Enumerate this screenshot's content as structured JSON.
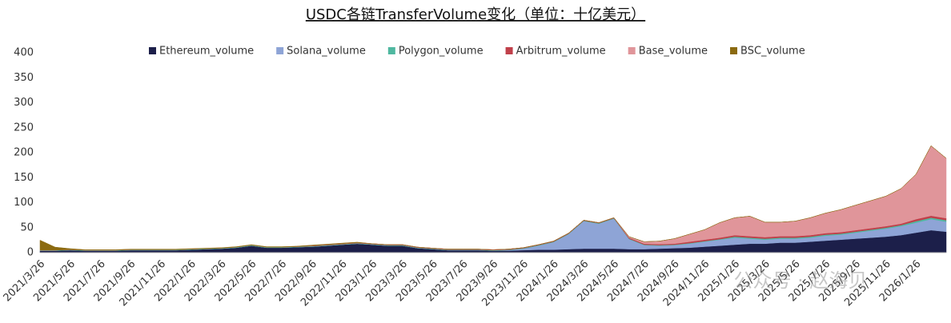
{
  "chart_data": {
    "type": "stacked-area",
    "title": "USDC各链TransferVolume变化（单位：十亿美元）",
    "watermark": "公众号 · 赵海贝",
    "categories": [
      "2021/3/26",
      null,
      "2021/5/26",
      null,
      "2021/7/26",
      null,
      "2021/9/26",
      null,
      "2021/11/26",
      null,
      "2022/1/26",
      null,
      "2022/3/26",
      null,
      "2022/5/26",
      null,
      "2022/7/26",
      null,
      "2022/9/26",
      null,
      "2022/11/26",
      null,
      "2023/1/26",
      null,
      "2023/3/26",
      null,
      "2023/5/26",
      null,
      "2023/7/26",
      null,
      "2023/9/26",
      null,
      "2023/11/26",
      null,
      "2024/1/26",
      null,
      "2024/3/26",
      null,
      "2024/5/26",
      null,
      "2024/7/26",
      null,
      "2024/9/26",
      null,
      "2024/11/26",
      null,
      "2025/1/26",
      null,
      "2025/3/26",
      null,
      "2025/5/26",
      null,
      "2025/7/26",
      null,
      "2025/9/26",
      null,
      "2025/11/26",
      null,
      "2026/1/26",
      null,
      null
    ],
    "series": [
      {
        "name": "Ethereum_volume",
        "color": "#1c1f4a",
        "values": [
          4,
          4,
          5,
          4,
          4,
          4,
          5,
          5,
          5,
          5,
          6,
          7,
          8,
          10,
          14,
          10,
          10,
          11,
          12,
          14,
          16,
          18,
          16,
          14,
          14,
          9,
          7,
          5,
          5,
          5,
          4,
          4,
          5,
          6,
          6,
          7,
          8,
          8,
          8,
          7,
          7,
          8,
          9,
          10,
          12,
          14,
          16,
          18,
          18,
          20,
          20,
          22,
          24,
          26,
          28,
          30,
          32,
          35,
          40,
          45,
          42
        ]
      },
      {
        "name": "Solana_volume",
        "color": "#8ea4d6",
        "values": [
          0,
          0,
          0,
          0,
          0,
          0,
          0,
          0,
          0,
          0,
          0,
          0,
          0,
          0,
          0,
          0,
          0,
          0,
          0,
          0,
          0,
          0,
          0,
          0,
          0,
          0,
          0,
          0,
          0,
          0,
          0,
          1,
          3,
          8,
          15,
          30,
          55,
          50,
          60,
          20,
          8,
          6,
          6,
          8,
          10,
          12,
          14,
          10,
          8,
          8,
          8,
          8,
          10,
          10,
          12,
          14,
          16,
          18,
          20,
          22,
          20
        ]
      },
      {
        "name": "Polygon_volume",
        "color": "#4fb8a0",
        "values": [
          1,
          1,
          1,
          1,
          1,
          1,
          1,
          1,
          1,
          1,
          1,
          1,
          1,
          1,
          1,
          1,
          1,
          1,
          1,
          1,
          1,
          1,
          1,
          1,
          1,
          1,
          1,
          1,
          1,
          1,
          1,
          1,
          1,
          1,
          1,
          1,
          1,
          1,
          1,
          1,
          1,
          1,
          1,
          1,
          1,
          1,
          2,
          2,
          2,
          2,
          2,
          2,
          2,
          2,
          2,
          2,
          2,
          2,
          3,
          3,
          3
        ]
      },
      {
        "name": "Arbitrum_volume",
        "color": "#c0404a",
        "values": [
          0,
          0,
          0,
          0,
          0,
          0,
          0,
          0,
          0,
          0,
          0,
          0,
          0,
          0,
          0,
          0,
          0,
          0,
          1,
          1,
          1,
          1,
          1,
          1,
          1,
          1,
          1,
          1,
          1,
          1,
          1,
          1,
          1,
          1,
          1,
          1,
          1,
          1,
          1,
          2,
          2,
          2,
          2,
          3,
          3,
          3,
          3,
          3,
          3,
          3,
          3,
          3,
          3,
          3,
          3,
          3,
          3,
          3,
          4,
          4,
          4
        ]
      },
      {
        "name": "Base_volume",
        "color": "#e0959a",
        "values": [
          0,
          0,
          0,
          0,
          0,
          0,
          0,
          0,
          0,
          0,
          0,
          0,
          0,
          0,
          0,
          0,
          0,
          0,
          0,
          0,
          0,
          0,
          0,
          0,
          0,
          0,
          0,
          0,
          0,
          0,
          0,
          0,
          0,
          0,
          0,
          0,
          0,
          0,
          0,
          2,
          4,
          6,
          10,
          15,
          20,
          30,
          35,
          40,
          30,
          28,
          30,
          35,
          40,
          45,
          50,
          55,
          60,
          70,
          90,
          140,
          120
        ]
      },
      {
        "name": "BSC_volume",
        "color": "#8b6a10",
        "values": [
          20,
          6,
          2,
          1,
          1,
          1,
          1,
          1,
          1,
          1,
          1,
          1,
          1,
          1,
          1,
          1,
          1,
          1,
          1,
          1,
          1,
          1,
          0,
          0,
          0,
          0,
          0,
          0,
          0,
          0,
          0,
          0,
          0,
          0,
          0,
          0,
          0,
          0,
          0,
          0,
          0,
          0,
          0,
          0,
          0,
          0,
          0,
          0,
          0,
          0,
          0,
          0,
          0,
          0,
          0,
          0,
          0,
          0,
          0,
          0,
          0
        ]
      }
    ],
    "ylim": [
      0,
      400
    ],
    "yticks": [
      0,
      50,
      100,
      150,
      200,
      250,
      300,
      350,
      400
    ],
    "grid": false,
    "legend": "top"
  }
}
